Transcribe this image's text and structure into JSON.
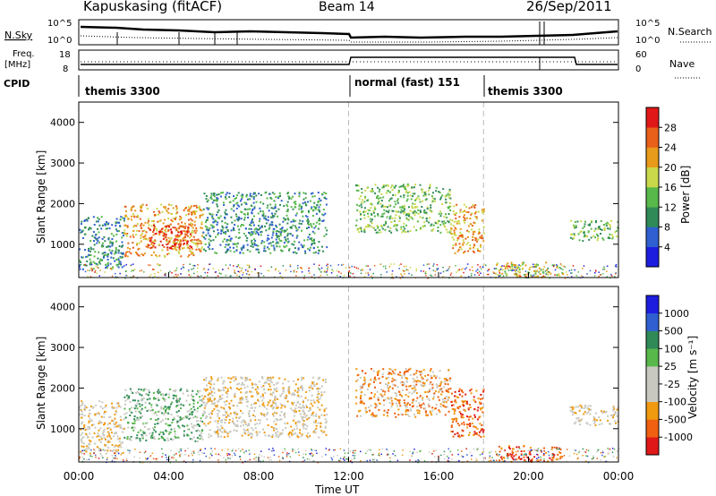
{
  "header": {
    "station": "Kapuskasing (fitACF)",
    "beam": "Beam 14",
    "date": "26/Sep/2011"
  },
  "summary_panel": {
    "nsky_label": "N.Sky",
    "nsearch_label": "N.Search",
    "left_ticks": [
      "10^5",
      "10^0"
    ],
    "right_ticks": [
      "10^5",
      "10^0"
    ],
    "freq_label_line1": "Freq.",
    "freq_label_line2": "[MHz]",
    "freq_ticks": [
      "18",
      "8"
    ],
    "nave_label": "Nave",
    "nave_ticks": [
      "60",
      "0"
    ],
    "cpid_label": "CPID",
    "cpid_segments": [
      {
        "label": "themis 3300",
        "start_hour": 0,
        "end_hour": 12
      },
      {
        "label": "normal (fast) 151",
        "start_hour": 12,
        "end_hour": 18
      },
      {
        "label": "themis 3300",
        "start_hour": 18,
        "end_hour": 24
      }
    ]
  },
  "chart_data": [
    {
      "type": "heatmap",
      "title": "Power",
      "xlabel": "Time UT",
      "ylabel": "Slant Range [km]",
      "xlim": [
        0,
        24
      ],
      "ylim": [
        180,
        4500
      ],
      "yticks": [
        1000,
        2000,
        3000,
        4000
      ],
      "colorbar": {
        "label": "Power [dB]",
        "ticks": [
          "4",
          "8",
          "12",
          "16",
          "20",
          "24",
          "28"
        ],
        "colors": [
          "#1d1de0",
          "#2f5fd0",
          "#2f8a58",
          "#58b84a",
          "#c8d84a",
          "#e89a1a",
          "#e8601a",
          "#e01818"
        ]
      },
      "regions": [
        {
          "t0": 0.0,
          "t1": 2.0,
          "r0": 400,
          "r1": 1700,
          "level": 2
        },
        {
          "t0": 2.0,
          "t1": 5.5,
          "r0": 700,
          "r1": 2000,
          "level": 5
        },
        {
          "t0": 3.0,
          "t1": 5.0,
          "r0": 900,
          "r1": 1500,
          "level": 7
        },
        {
          "t0": 5.5,
          "t1": 11.0,
          "r0": 800,
          "r1": 2300,
          "level": 2
        },
        {
          "t0": 12.3,
          "t1": 16.5,
          "r0": 1300,
          "r1": 2500,
          "level": 3
        },
        {
          "t0": 16.5,
          "t1": 18.0,
          "r0": 800,
          "r1": 2000,
          "level": 5
        },
        {
          "t0": 18.5,
          "t1": 21.5,
          "r0": 200,
          "r1": 600,
          "level": 4
        },
        {
          "t0": 21.8,
          "t1": 24.0,
          "r0": 1100,
          "r1": 1600,
          "level": 3
        }
      ]
    },
    {
      "type": "heatmap",
      "title": "Velocity",
      "xlabel": "Time UT",
      "ylabel": "Slant Range [km]",
      "xlim": [
        0,
        24
      ],
      "ylim": [
        180,
        4500
      ],
      "yticks": [
        1000,
        2000,
        3000,
        4000
      ],
      "colorbar": {
        "label": "Velocity [m s⁻¹]",
        "ticks": [
          "-1000",
          "-500",
          "-100",
          "-25",
          "25",
          "100",
          "500",
          "1000"
        ],
        "colors": [
          "#e01818",
          "#f06010",
          "#f09a10",
          "#c8c8c0",
          "#c8c8c0",
          "#58b84a",
          "#2f8a58",
          "#2f5fd0",
          "#1d1de0"
        ]
      },
      "regions": [
        {
          "t0": 0.0,
          "t1": 2.0,
          "r0": 400,
          "r1": 1700,
          "level": 3
        },
        {
          "t0": 2.0,
          "t1": 5.5,
          "r0": 700,
          "r1": 2000,
          "level": 5
        },
        {
          "t0": 5.5,
          "t1": 11.0,
          "r0": 800,
          "r1": 2300,
          "level": 3
        },
        {
          "t0": 12.3,
          "t1": 16.5,
          "r0": 1300,
          "r1": 2500,
          "level": 2
        },
        {
          "t0": 16.5,
          "t1": 18.0,
          "r0": 800,
          "r1": 2000,
          "level": 1
        },
        {
          "t0": 18.5,
          "t1": 21.5,
          "r0": 200,
          "r1": 600,
          "level": 1
        },
        {
          "t0": 21.8,
          "t1": 24.0,
          "r0": 1100,
          "r1": 1600,
          "level": 3
        }
      ]
    }
  ],
  "x_axis": {
    "ticks": [
      "00:00",
      "04:00",
      "08:00",
      "12:00",
      "16:00",
      "20:00",
      "00:00"
    ],
    "label": "Time UT"
  }
}
